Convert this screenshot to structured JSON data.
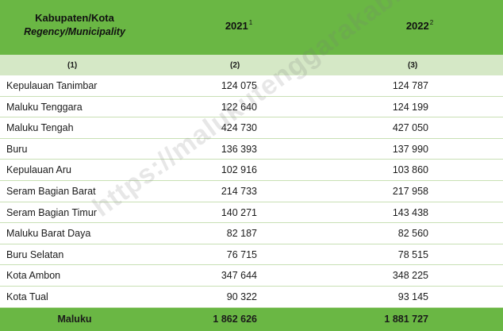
{
  "header": {
    "col1_main": "Kabupaten/Kota",
    "col1_sub": "Regency/Municipality",
    "col2": "2021",
    "col2_sup": "1",
    "col3": "2022",
    "col3_sup": "2"
  },
  "column_numbers": [
    "(1)",
    "(2)",
    "(3)"
  ],
  "rows": [
    {
      "name": "Kepulauan Tanimbar",
      "v2021": "124 075",
      "v2022": "124 787"
    },
    {
      "name": "Maluku Tenggara",
      "v2021": "122 640",
      "v2022": "124 199"
    },
    {
      "name": "Maluku Tengah",
      "v2021": "424 730",
      "v2022": "427 050"
    },
    {
      "name": "Buru",
      "v2021": "136 393",
      "v2022": "137 990"
    },
    {
      "name": "Kepulauan Aru",
      "v2021": "102 916",
      "v2022": "103 860"
    },
    {
      "name": "Seram Bagian Barat",
      "v2021": "214 733",
      "v2022": "217 958"
    },
    {
      "name": "Seram Bagian Timur",
      "v2021": "140 271",
      "v2022": "143 438"
    },
    {
      "name": "Maluku Barat Daya",
      "v2021": "82 187",
      "v2022": "82 560"
    },
    {
      "name": "Buru Selatan",
      "v2021": "76 715",
      "v2022": "78 515"
    },
    {
      "name": "Kota Ambon",
      "v2021": "347 644",
      "v2022": "348 225"
    },
    {
      "name": "Kota Tual",
      "v2021": "90 322",
      "v2022": "93 145"
    }
  ],
  "total": {
    "name": "Maluku",
    "v2021": "1 862 626",
    "v2022": "1 881 727"
  },
  "watermark": "https://malukutenggarakab.bps.go.id",
  "colors": {
    "header_green": "#6ab744",
    "subheader_green": "#d5e8c6"
  }
}
